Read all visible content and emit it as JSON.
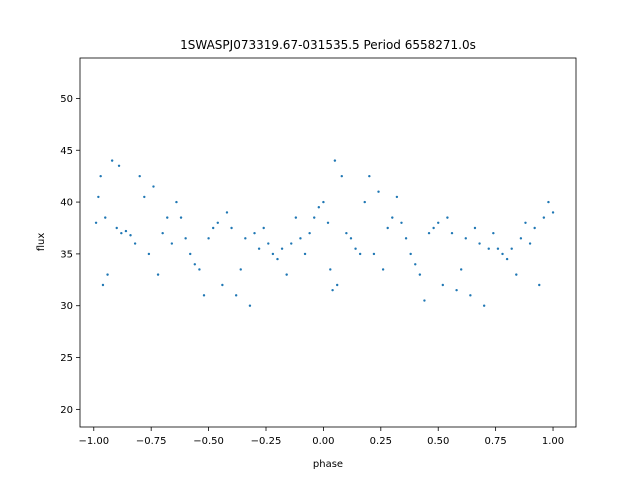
{
  "chart_data": {
    "type": "scatter",
    "title": "1SWASPJ073319.67-031535.5 Period 6558271.0s",
    "xlabel": "phase",
    "ylabel": "flux",
    "xlim": [
      -1.06,
      1.1
    ],
    "ylim": [
      18.3,
      53.9
    ],
    "xticks": [
      -1.0,
      -0.75,
      -0.5,
      -0.25,
      0.0,
      0.25,
      0.5,
      0.75,
      1.0
    ],
    "xtick_labels": [
      "−1.00",
      "−0.75",
      "−0.50",
      "−0.25",
      "0.00",
      "0.25",
      "0.50",
      "0.75",
      "1.00"
    ],
    "yticks": [
      20,
      25,
      30,
      35,
      40,
      45,
      50
    ],
    "ytick_labels": [
      "20",
      "25",
      "30",
      "35",
      "40",
      "45",
      "50"
    ],
    "grid": false,
    "legend": "none",
    "marker_color": "#1f77b4",
    "series": [
      {
        "values_note_free": true,
        "points": [
          [
            -0.99,
            38.0
          ],
          [
            -0.98,
            40.5
          ],
          [
            -0.97,
            42.5
          ],
          [
            -0.96,
            32.0
          ],
          [
            -0.95,
            38.5
          ],
          [
            -0.94,
            33.0
          ],
          [
            -0.92,
            44.0
          ],
          [
            -0.9,
            37.5
          ],
          [
            -0.89,
            43.5
          ],
          [
            -0.88,
            37.0
          ],
          [
            -0.86,
            37.2
          ],
          [
            -0.84,
            36.8
          ],
          [
            -0.82,
            36.0
          ],
          [
            -0.8,
            42.5
          ],
          [
            -0.78,
            40.5
          ],
          [
            -0.76,
            35.0
          ],
          [
            -0.74,
            41.5
          ],
          [
            -0.72,
            33.0
          ],
          [
            -0.7,
            37.0
          ],
          [
            -0.68,
            38.5
          ],
          [
            -0.66,
            36.0
          ],
          [
            -0.64,
            40.0
          ],
          [
            -0.62,
            38.5
          ],
          [
            -0.6,
            36.5
          ],
          [
            -0.58,
            35.0
          ],
          [
            -0.56,
            34.0
          ],
          [
            -0.54,
            33.5
          ],
          [
            -0.52,
            31.0
          ],
          [
            -0.5,
            36.5
          ],
          [
            -0.48,
            37.5
          ],
          [
            -0.46,
            38.0
          ],
          [
            -0.44,
            32.0
          ],
          [
            -0.42,
            39.0
          ],
          [
            -0.4,
            37.5
          ],
          [
            -0.38,
            31.0
          ],
          [
            -0.36,
            33.5
          ],
          [
            -0.34,
            36.5
          ],
          [
            -0.32,
            30.0
          ],
          [
            -0.3,
            37.0
          ],
          [
            -0.28,
            35.5
          ],
          [
            -0.26,
            37.5
          ],
          [
            -0.24,
            36.0
          ],
          [
            -0.22,
            35.0
          ],
          [
            -0.2,
            34.5
          ],
          [
            -0.18,
            35.5
          ],
          [
            -0.16,
            33.0
          ],
          [
            -0.14,
            36.0
          ],
          [
            -0.12,
            38.5
          ],
          [
            -0.1,
            36.5
          ],
          [
            -0.08,
            35.0
          ],
          [
            -0.06,
            37.0
          ],
          [
            -0.04,
            38.5
          ],
          [
            -0.02,
            39.5
          ],
          [
            0.0,
            40.0
          ],
          [
            0.02,
            38.0
          ],
          [
            0.03,
            33.5
          ],
          [
            0.04,
            31.5
          ],
          [
            0.05,
            44.0
          ],
          [
            0.06,
            32.0
          ],
          [
            0.08,
            42.5
          ],
          [
            0.1,
            37.0
          ],
          [
            0.12,
            36.5
          ],
          [
            0.14,
            35.5
          ],
          [
            0.16,
            35.0
          ],
          [
            0.18,
            40.0
          ],
          [
            0.2,
            42.5
          ],
          [
            0.22,
            35.0
          ],
          [
            0.24,
            41.0
          ],
          [
            0.26,
            33.5
          ],
          [
            0.28,
            37.5
          ],
          [
            0.3,
            38.5
          ],
          [
            0.32,
            40.5
          ],
          [
            0.34,
            38.0
          ],
          [
            0.36,
            36.5
          ],
          [
            0.38,
            35.0
          ],
          [
            0.4,
            34.0
          ],
          [
            0.42,
            33.0
          ],
          [
            0.44,
            30.5
          ],
          [
            0.46,
            37.0
          ],
          [
            0.48,
            37.5
          ],
          [
            0.5,
            38.0
          ],
          [
            0.52,
            32.0
          ],
          [
            0.54,
            38.5
          ],
          [
            0.56,
            37.0
          ],
          [
            0.58,
            31.5
          ],
          [
            0.6,
            33.5
          ],
          [
            0.62,
            36.5
          ],
          [
            0.64,
            31.0
          ],
          [
            0.66,
            37.5
          ],
          [
            0.68,
            36.0
          ],
          [
            0.7,
            30.0
          ],
          [
            0.72,
            35.5
          ],
          [
            0.74,
            37.0
          ],
          [
            0.76,
            35.5
          ],
          [
            0.78,
            35.0
          ],
          [
            0.8,
            34.5
          ],
          [
            0.82,
            35.5
          ],
          [
            0.84,
            33.0
          ],
          [
            0.86,
            36.5
          ],
          [
            0.88,
            38.0
          ],
          [
            0.9,
            36.0
          ],
          [
            0.92,
            37.5
          ],
          [
            0.94,
            32.0
          ],
          [
            0.96,
            38.5
          ],
          [
            0.98,
            40.0
          ],
          [
            1.0,
            39.0
          ]
        ]
      }
    ]
  }
}
